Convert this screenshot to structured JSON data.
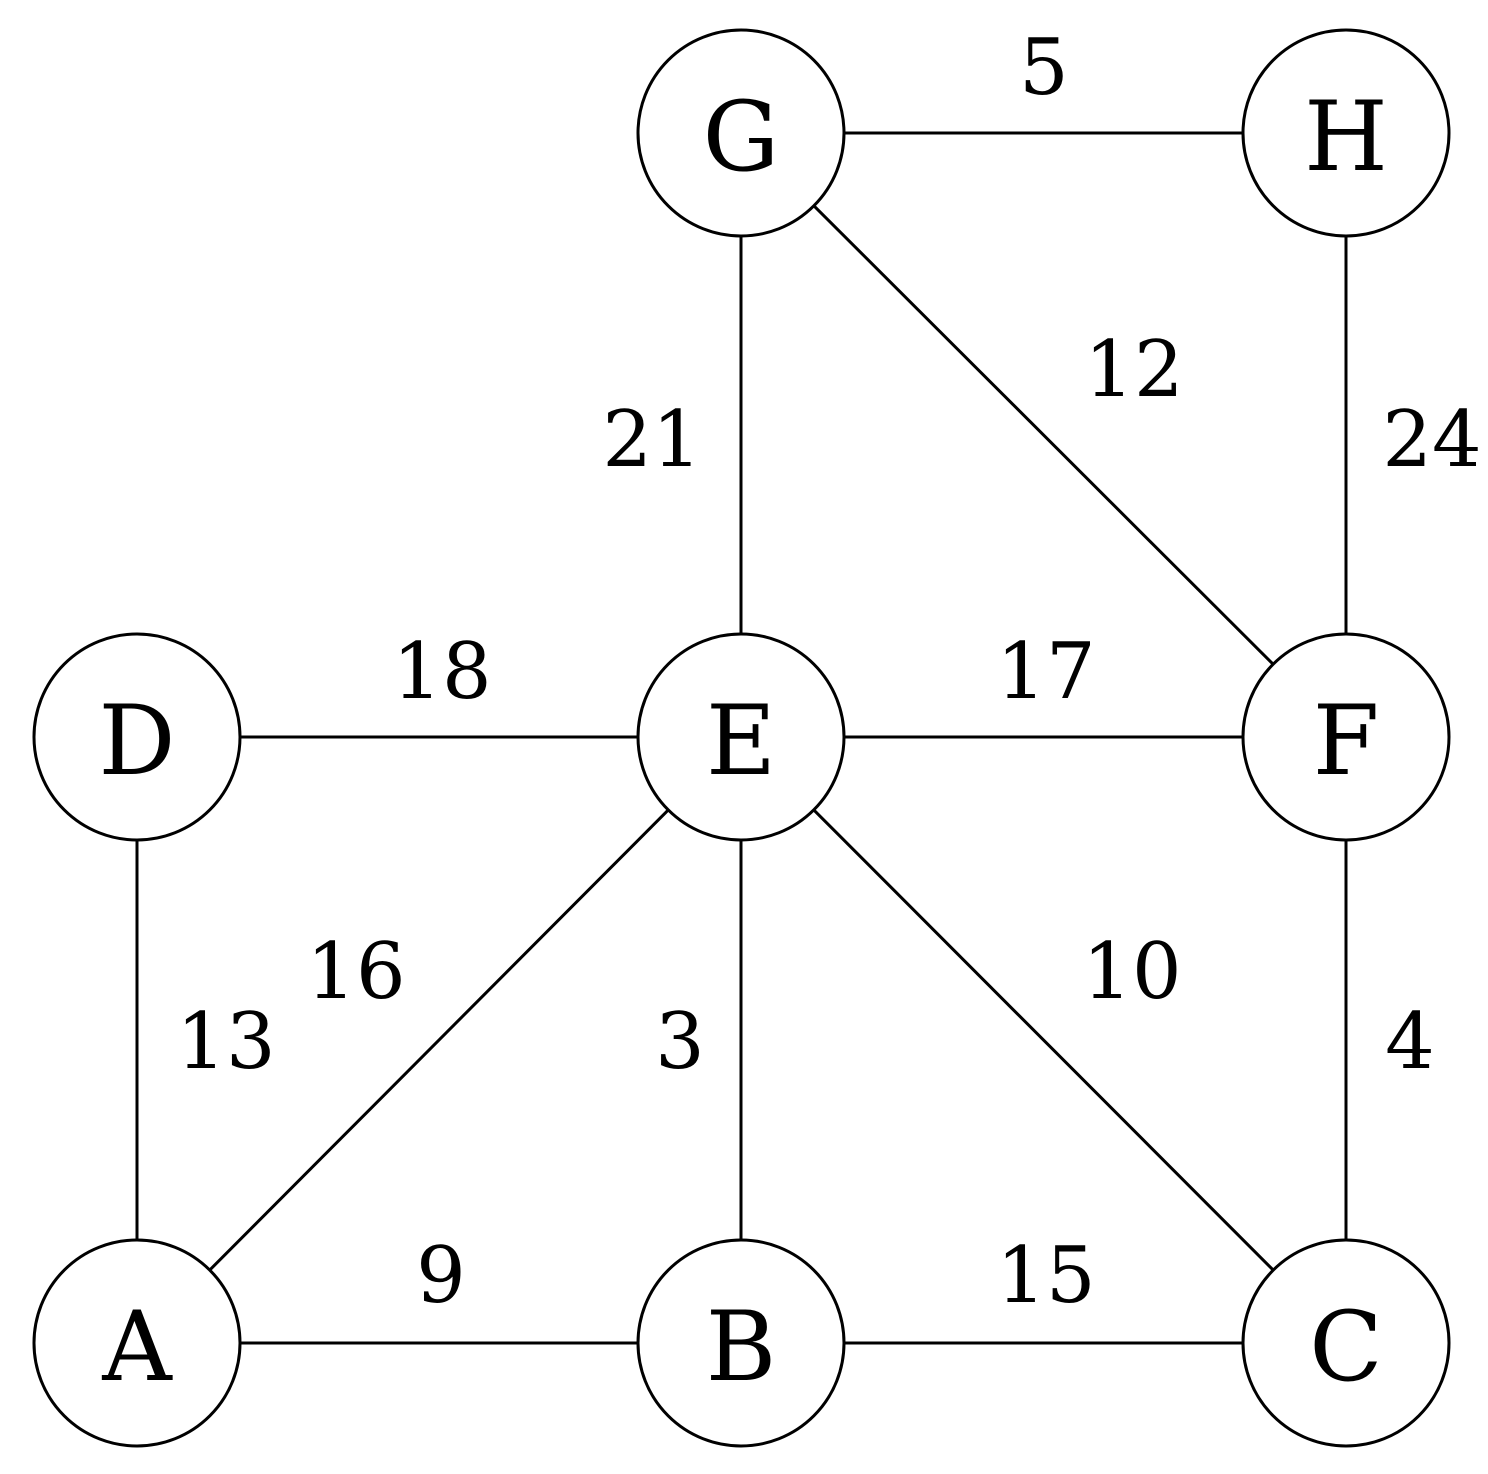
{
  "graph": {
    "nodes": [
      {
        "id": "A",
        "label": "A"
      },
      {
        "id": "B",
        "label": "B"
      },
      {
        "id": "C",
        "label": "C"
      },
      {
        "id": "D",
        "label": "D"
      },
      {
        "id": "E",
        "label": "E"
      },
      {
        "id": "F",
        "label": "F"
      },
      {
        "id": "G",
        "label": "G"
      },
      {
        "id": "H",
        "label": "H"
      }
    ],
    "edges": [
      {
        "from": "G",
        "to": "H",
        "weight": "5"
      },
      {
        "from": "G",
        "to": "E",
        "weight": "21"
      },
      {
        "from": "G",
        "to": "F",
        "weight": "12"
      },
      {
        "from": "H",
        "to": "F",
        "weight": "24"
      },
      {
        "from": "D",
        "to": "E",
        "weight": "18"
      },
      {
        "from": "E",
        "to": "F",
        "weight": "17"
      },
      {
        "from": "D",
        "to": "A",
        "weight": "13"
      },
      {
        "from": "A",
        "to": "E",
        "weight": "16"
      },
      {
        "from": "E",
        "to": "B",
        "weight": "3"
      },
      {
        "from": "E",
        "to": "C",
        "weight": "10"
      },
      {
        "from": "F",
        "to": "C",
        "weight": "4"
      },
      {
        "from": "A",
        "to": "B",
        "weight": "9"
      },
      {
        "from": "B",
        "to": "C",
        "weight": "15"
      }
    ]
  }
}
